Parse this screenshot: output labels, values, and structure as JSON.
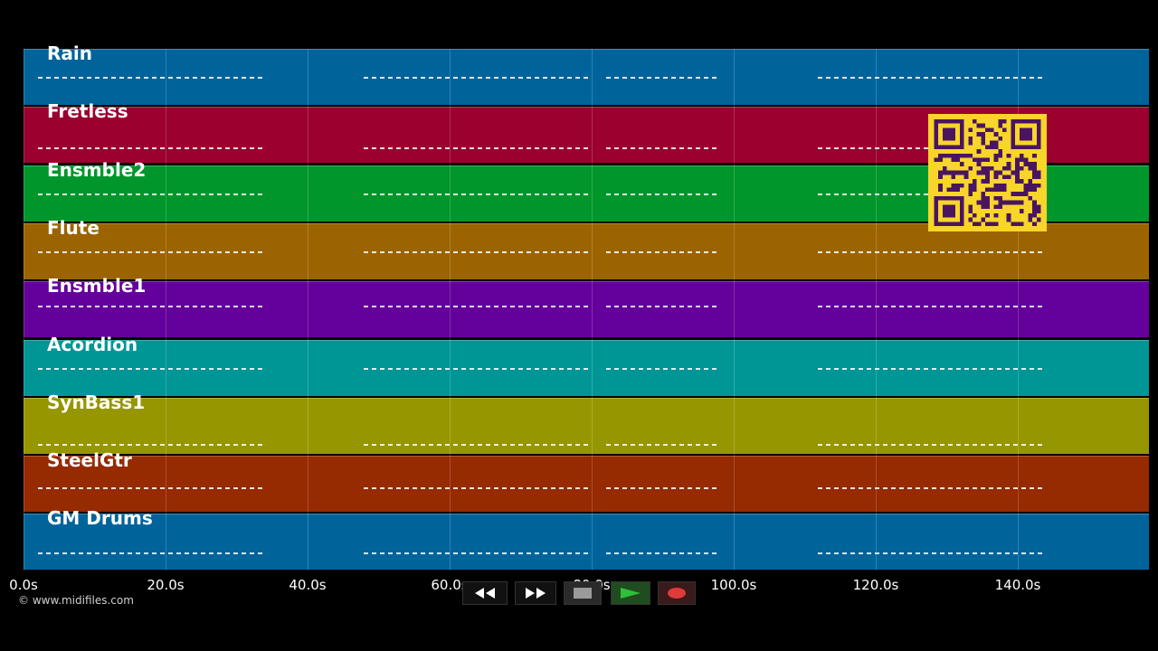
{
  "window": {
    "title": ""
  },
  "tracks": [
    {
      "name": "Rain",
      "color": "#00649b"
    },
    {
      "name": "Fretless",
      "color": "#9b002e"
    },
    {
      "name": "Ensmble2",
      "color": "#00962c"
    },
    {
      "name": "Flute",
      "color": "#9b6400"
    },
    {
      "name": "Ensmble1",
      "color": "#64009b"
    },
    {
      "name": "Acordion",
      "color": "#009696"
    },
    {
      "name": "SynBass1",
      "color": "#969600"
    },
    {
      "name": "SteelGtr",
      "color": "#962a00"
    },
    {
      "name": "GM Drums",
      "color": "#00649b"
    }
  ],
  "timeline": {
    "ticks": [
      "0.0s",
      "20.0s",
      "40.0s",
      "60.0s",
      "80.0s",
      "100.0s",
      "120.0s",
      "140.0s"
    ],
    "max_seconds": 158.5
  },
  "footer": {
    "copyright": "© www.midifiles.com"
  },
  "controls": [
    {
      "name": "rewind-button",
      "icon": "rewind-icon"
    },
    {
      "name": "fast-forward-button",
      "icon": "fast-forward-icon"
    },
    {
      "name": "stop-button",
      "icon": "stop-icon"
    },
    {
      "name": "play-button",
      "icon": "play-icon"
    },
    {
      "name": "record-button",
      "icon": "record-icon"
    }
  ],
  "colors": {
    "background": "#000000",
    "qr_background": "#f7d52a",
    "qr_foreground": "#4a1560",
    "play": "#2aa02a",
    "record": "#d03030"
  }
}
